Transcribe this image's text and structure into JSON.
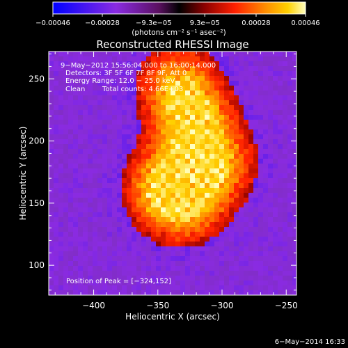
{
  "chart_data": {
    "type": "heatmap",
    "title": "Reconstructed RHESSI Image",
    "xlabel": "Heliocentric X (arcsec)",
    "ylabel": "Heliocentric Y (arcsec)",
    "xlim": [
      -435,
      -242
    ],
    "ylim": [
      76,
      272
    ],
    "x_ticks": [
      -400,
      -350,
      -300,
      -250
    ],
    "x_tick_labels": [
      "−400",
      "−350",
      "−300",
      "−250"
    ],
    "y_ticks": [
      100,
      150,
      200,
      250
    ],
    "y_tick_labels": [
      "100",
      "150",
      "200",
      "250"
    ],
    "colorbar": {
      "min": -0.00046,
      "max": 0.00046,
      "ticks": [
        -0.00046,
        -0.00028,
        -9.3e-05,
        9.3e-05,
        0.00028,
        0.00046
      ],
      "tick_labels": [
        "−0.00046",
        "−0.00028",
        "−9.3e−05",
        "9.3e−05",
        "0.00028",
        "0.00046"
      ],
      "unit_label": "(photons cm⁻² s⁻¹ asec⁻²)",
      "colormap_stops": [
        "#0000ff",
        "#8a2be2",
        "#7a2fb0",
        "#2a0000",
        "#8b0000",
        "#ff2000",
        "#ff8c00",
        "#ffd000",
        "#ffffc0"
      ]
    },
    "annotations": {
      "time_range": "9−May−2012 15:56:04.000 to 16:00:14.000",
      "detectors": "Detectors: 3F 5F 6F 7F 8F 9F, Att 0",
      "energy_range": "Energy Range: 12.0 − 25.0 keV",
      "clean": "Clean",
      "total_counts": "Total counts: 4.66E+03",
      "peak": "Position of Peak = [−324,152]"
    },
    "peak_position": [
      -324,
      152
    ],
    "bright_region": {
      "description_points": [
        [
          -330,
          150
        ],
        [
          -320,
          215
        ],
        [
          -345,
          165
        ],
        [
          -305,
          180
        ],
        [
          -335,
          245
        ]
      ]
    }
  },
  "footer": {
    "date": "6−May−2014 16:33"
  }
}
